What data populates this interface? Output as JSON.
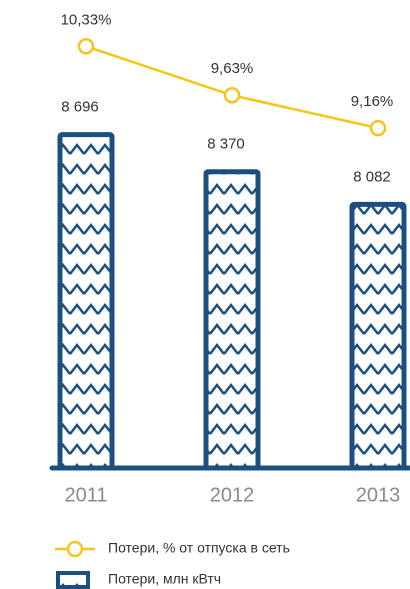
{
  "chart_data": {
    "type": "bar",
    "categories": [
      "2011",
      "2012",
      "2013"
    ],
    "series": [
      {
        "name": "Потери, % от отпуска в сеть",
        "type": "line",
        "axis": "y2",
        "color": "#f5c518",
        "values": [
          10.33,
          9.63,
          9.16
        ],
        "value_labels": [
          "10,33%",
          "9,63%",
          "9,16%"
        ]
      },
      {
        "name": "Потери, млн кВтч",
        "type": "bar",
        "color": "#1b4f80",
        "values": [
          8696,
          8370,
          8082
        ],
        "value_labels": [
          "8 696",
          "8 370",
          "8 082"
        ]
      }
    ],
    "ylim": [
      5760,
      9530
    ],
    "y2lim": [
      4.3,
      10.42
    ]
  }
}
